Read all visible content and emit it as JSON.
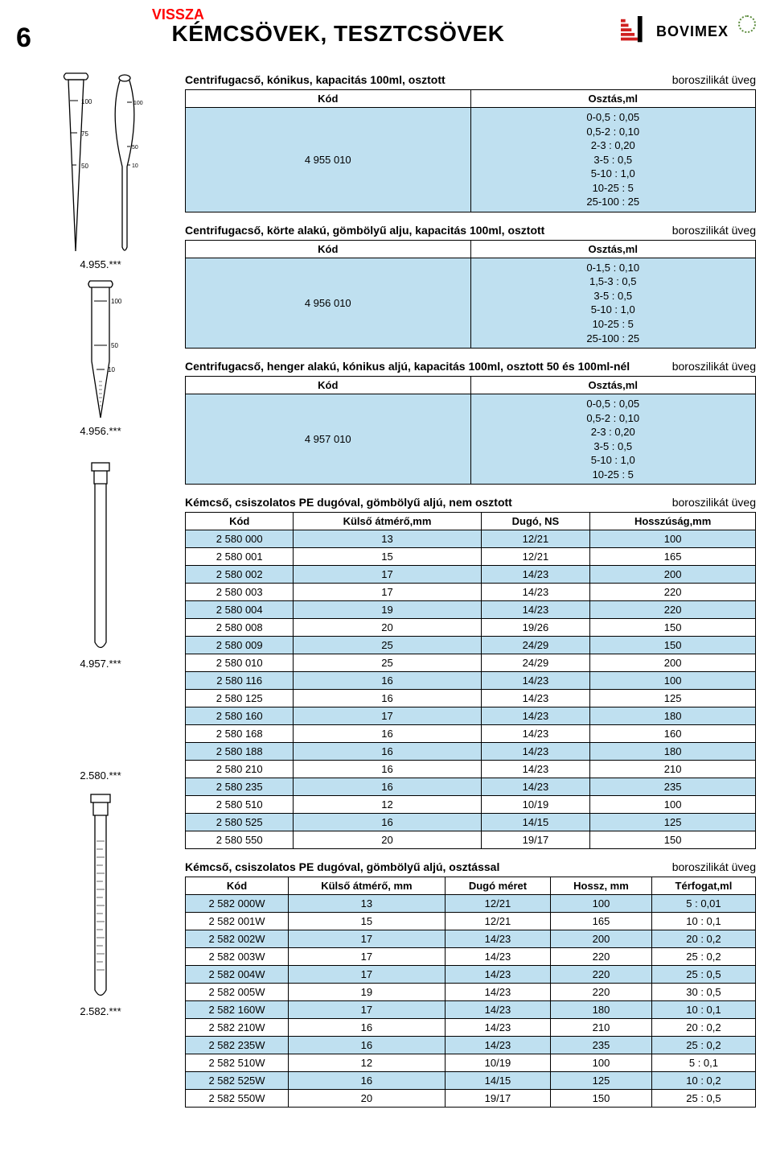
{
  "header": {
    "back": "VISSZA",
    "title": "KÉMCSÖVEK, TESZTCSÖVEK",
    "page_number": "6",
    "brand": "BOVIMEX"
  },
  "material": "boroszilikát üveg",
  "figures": {
    "f1": "4.955.***",
    "f2": "4.956.***",
    "f3": "4.957.***",
    "f4": "2.580.***",
    "f5": "2.582.***"
  },
  "sec1": {
    "title": "Centrifugacső, kónikus, kapacitás 100ml, osztott",
    "col_code": "Kód",
    "col_osz": "Osztás,ml",
    "code": "4 955 010",
    "osz": "0-0,5 : 0,05\n0,5-2 : 0,10\n2-3 : 0,20\n3-5 : 0,5\n5-10 : 1,0\n10-25 : 5\n25-100 : 25"
  },
  "sec2": {
    "title": "Centrifugacső, körte alakú, gömbölyű alju, kapacitás 100ml, osztott",
    "col_code": "Kód",
    "col_osz": "Osztás,ml",
    "code": "4 956 010",
    "osz": "0-1,5 : 0,10\n1,5-3 : 0,5\n3-5 : 0,5\n5-10 : 1,0\n10-25 : 5\n25-100 : 25"
  },
  "sec3": {
    "title": "Centrifugacső, henger alakú, kónikus aljú, kapacitás 100ml, osztott 50 és 100ml-nél",
    "col_code": "Kód",
    "col_osz": "Osztás,ml",
    "code": "4 957 010",
    "osz": "0-0,5 : 0,05\n0,5-2 : 0,10\n2-3 : 0,20\n3-5 : 0,5\n5-10 : 1,0\n10-25 : 5"
  },
  "sec4": {
    "title": "Kémcső, csiszolatos PE dugóval, gömbölyű aljú, nem osztott",
    "columns": [
      "Kód",
      "Külső átmérő,mm",
      "Dugó, NS",
      "Hosszúság,mm"
    ],
    "rows": [
      [
        "2 580 000",
        "13",
        "12/21",
        "100"
      ],
      [
        "2 580 001",
        "15",
        "12/21",
        "165"
      ],
      [
        "2 580 002",
        "17",
        "14/23",
        "200"
      ],
      [
        "2 580 003",
        "17",
        "14/23",
        "220"
      ],
      [
        "2 580 004",
        "19",
        "14/23",
        "220"
      ],
      [
        "2 580 008",
        "20",
        "19/26",
        "150"
      ],
      [
        "2 580 009",
        "25",
        "24/29",
        "150"
      ],
      [
        "2 580 010",
        "25",
        "24/29",
        "200"
      ],
      [
        "2 580 116",
        "16",
        "14/23",
        "100"
      ],
      [
        "2 580 125",
        "16",
        "14/23",
        "125"
      ],
      [
        "2 580 160",
        "17",
        "14/23",
        "180"
      ],
      [
        "2 580 168",
        "16",
        "14/23",
        "160"
      ],
      [
        "2 580 188",
        "16",
        "14/23",
        "180"
      ],
      [
        "2 580 210",
        "16",
        "14/23",
        "210"
      ],
      [
        "2 580 235",
        "16",
        "14/23",
        "235"
      ],
      [
        "2 580 510",
        "12",
        "10/19",
        "100"
      ],
      [
        "2 580 525",
        "16",
        "14/15",
        "125"
      ],
      [
        "2 580 550",
        "20",
        "19/17",
        "150"
      ]
    ]
  },
  "sec5": {
    "title": "Kémcső, csiszolatos PE dugóval, gömbölyű aljú, osztással",
    "columns": [
      "Kód",
      "Külső átmérő, mm",
      "Dugó méret",
      "Hossz, mm",
      "Térfogat,ml"
    ],
    "rows": [
      [
        "2 582 000W",
        "13",
        "12/21",
        "100",
        "5 : 0,01"
      ],
      [
        "2 582 001W",
        "15",
        "12/21",
        "165",
        "10 : 0,1"
      ],
      [
        "2 582 002W",
        "17",
        "14/23",
        "200",
        "20 : 0,2"
      ],
      [
        "2 582 003W",
        "17",
        "14/23",
        "220",
        "25 : 0,2"
      ],
      [
        "2 582 004W",
        "17",
        "14/23",
        "220",
        "25 : 0,5"
      ],
      [
        "2 582 005W",
        "19",
        "14/23",
        "220",
        "30 : 0,5"
      ],
      [
        "2 582 160W",
        "17",
        "14/23",
        "180",
        "10 : 0,1"
      ],
      [
        "2 582 210W",
        "16",
        "14/23",
        "210",
        "20 : 0,2"
      ],
      [
        "2 582 235W",
        "16",
        "14/23",
        "235",
        "25 : 0,2"
      ],
      [
        "2 582 510W",
        "12",
        "10/19",
        "100",
        "5 : 0,1"
      ],
      [
        "2 582 525W",
        "16",
        "14/15",
        "125",
        "10 : 0,2"
      ],
      [
        "2 582 550W",
        "20",
        "19/17",
        "150",
        "25 : 0,5"
      ]
    ]
  },
  "style": {
    "row_odd_bg": "#bfe0f0",
    "row_even_bg": "#ffffff",
    "border_color": "#000000",
    "font_size_body": 13,
    "font_size_title": 28
  }
}
